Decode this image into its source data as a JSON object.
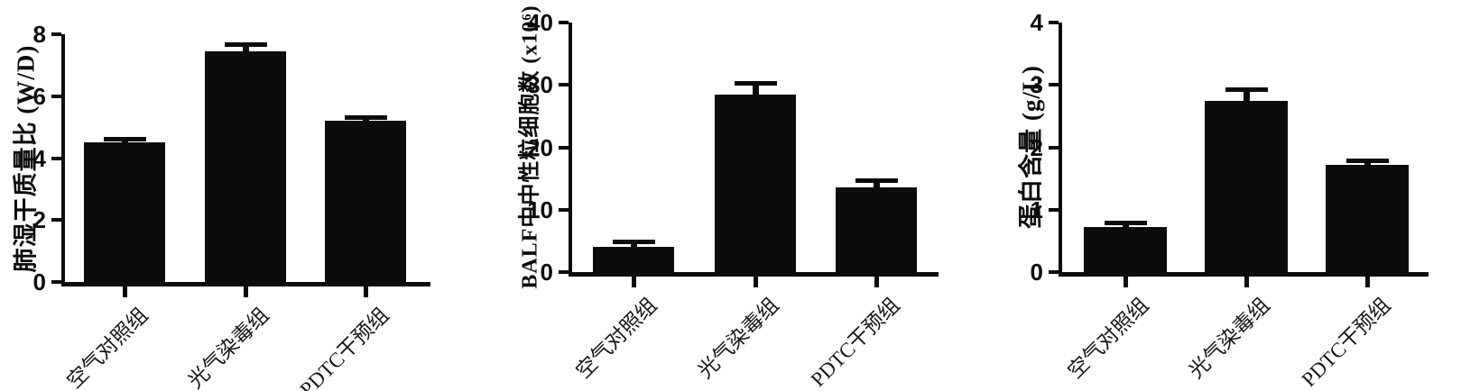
{
  "page": {
    "background": "#ffffff",
    "ink": "#0c0c0c"
  },
  "chart_data": [
    {
      "type": "bar",
      "title": "",
      "xlabel": "",
      "ylabel": "肺湿干质量比 (W/D)",
      "categories": [
        "空气对照组",
        "光气染毒组",
        "PDTC干预组"
      ],
      "values": [
        4.5,
        7.45,
        5.2
      ],
      "errors": [
        0.12,
        0.22,
        0.12
      ],
      "ylim": [
        0,
        8
      ],
      "yticks": [
        0,
        2,
        4,
        6,
        8
      ],
      "bar_color": "#0c0c0c",
      "error_bars": "upper caps",
      "grid": "off",
      "legend": "none"
    },
    {
      "type": "bar",
      "title": "",
      "xlabel": "",
      "ylabel": "BALF中中性粒细胞数 (x10⁶)",
      "categories": [
        "空气对照组",
        "光气染毒组",
        "PDTC干预组"
      ],
      "values": [
        4.1,
        28.5,
        13.6
      ],
      "errors": [
        0.7,
        1.7,
        1.0
      ],
      "ylim": [
        0,
        40
      ],
      "yticks": [
        0,
        10,
        20,
        30,
        40
      ],
      "bar_color": "#0c0c0c",
      "error_bars": "upper caps",
      "grid": "off",
      "legend": "none"
    },
    {
      "type": "bar",
      "title": "",
      "xlabel": "",
      "ylabel": "蛋白含量 (g/L)",
      "categories": [
        "空气对照组",
        "光气染毒组",
        "PDTC干预组"
      ],
      "values": [
        0.72,
        2.75,
        1.72
      ],
      "errors": [
        0.06,
        0.17,
        0.06
      ],
      "ylim": [
        0,
        4
      ],
      "yticks": [
        0,
        1,
        2,
        3,
        4
      ],
      "bar_color": "#0c0c0c",
      "error_bars": "upper caps",
      "grid": "off",
      "legend": "none"
    }
  ]
}
